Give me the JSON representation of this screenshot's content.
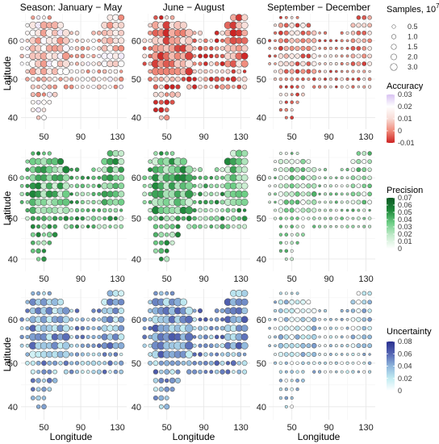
{
  "chart_data": {
    "type": "scatter",
    "column_titles": [
      "Season: January − May",
      "June − August",
      "September − December"
    ],
    "xlabel": "Longitude",
    "ylabel": "Latitude",
    "x_ticks": [
      50,
      90,
      130
    ],
    "y_ticks": [
      40,
      50,
      60
    ],
    "xlim": [
      25,
      140
    ],
    "ylim": [
      37,
      67
    ],
    "grid": true,
    "size_legend": {
      "title": "Samples, 10",
      "title_superscript": "7",
      "values": [
        0.5,
        1.0,
        1.5,
        2.0,
        3.0
      ],
      "labels": [
        "0.5",
        "1.0",
        "1.5",
        "2.0",
        "3.0"
      ]
    },
    "rows": [
      {
        "metric": "Accuracy",
        "colorbar_labels": [
          "0.03",
          "0.02",
          "0.01",
          "0",
          "-0.01"
        ],
        "colorbar_values": [
          0.03,
          0.02,
          0.01,
          0,
          -0.01
        ],
        "range": [
          -0.01,
          0.03
        ],
        "stops": [
          "#cc2222",
          "#f08a7a",
          "#f8dcd6",
          "#ffffff",
          "#d8c2f2"
        ],
        "means": [
          0.012,
          0.001,
          0.003
        ]
      },
      {
        "metric": "Precision",
        "colorbar_labels": [
          "0.07",
          "0.06",
          "0.05",
          "0.04",
          "0.03",
          "0.02",
          "0.01",
          "0"
        ],
        "colorbar_values": [
          0.07,
          0.06,
          0.05,
          0.04,
          0.03,
          0.02,
          0.01,
          0
        ],
        "range": [
          0,
          0.07
        ],
        "stops": [
          "#ffffff",
          "#c6ecce",
          "#6fcf87",
          "#1f8a3b",
          "#0b5a24"
        ],
        "means": [
          0.034,
          0.034,
          0.022
        ]
      },
      {
        "metric": "Uncertainty",
        "colorbar_labels": [
          "0.08",
          "0.06",
          "0.04",
          "0.02",
          "0"
        ],
        "colorbar_values": [
          0.08,
          0.06,
          0.04,
          0.02,
          0
        ],
        "range": [
          0,
          0.08
        ],
        "stops": [
          "#ffffff",
          "#c2ecf2",
          "#8fb6dc",
          "#5566b4",
          "#2a2f8f"
        ],
        "means": [
          0.037,
          0.042,
          0.022
        ]
      }
    ],
    "grid_points": {
      "lat_rows": [
        {
          "lat": 66,
          "lons": [
            38,
            44,
            50,
            56,
            122,
            128,
            134
          ]
        },
        {
          "lat": 64,
          "lons": [
            32,
            38,
            44,
            50,
            56,
            62,
            68,
            116,
            122,
            128,
            134
          ]
        },
        {
          "lat": 62,
          "lons": [
            32,
            38,
            44,
            50,
            56,
            62,
            68,
            74,
            80,
            86,
            104,
            110,
            116,
            122,
            128,
            134
          ]
        },
        {
          "lat": 60,
          "lons": [
            26,
            32,
            38,
            44,
            50,
            56,
            62,
            68,
            74,
            80,
            86,
            92,
            98,
            104,
            110,
            116,
            122,
            128,
            134
          ]
        },
        {
          "lat": 58,
          "lons": [
            26,
            32,
            38,
            44,
            50,
            56,
            62,
            68,
            74,
            80,
            86,
            92,
            98,
            104,
            110,
            116,
            122,
            128,
            134
          ]
        },
        {
          "lat": 56,
          "lons": [
            26,
            32,
            38,
            44,
            50,
            56,
            62,
            68,
            74,
            80,
            86,
            92,
            98,
            104,
            110,
            116,
            122,
            128,
            134
          ]
        },
        {
          "lat": 54,
          "lons": [
            26,
            32,
            38,
            44,
            50,
            56,
            62,
            68,
            74,
            80,
            86,
            92,
            98,
            104,
            110,
            116,
            122,
            128,
            134
          ]
        },
        {
          "lat": 52,
          "lons": [
            32,
            38,
            44,
            50,
            56,
            62,
            68,
            74,
            80,
            86,
            92,
            98,
            104,
            110,
            116,
            122,
            128,
            134
          ]
        },
        {
          "lat": 50,
          "lons": [
            32,
            38,
            44,
            50,
            56,
            62,
            68,
            74,
            80,
            86,
            92,
            98,
            104,
            110,
            116,
            122,
            128,
            134
          ]
        },
        {
          "lat": 48,
          "lons": [
            38,
            44,
            50,
            56,
            62,
            74,
            80,
            86,
            92,
            98,
            104,
            110,
            116,
            122,
            128,
            134
          ]
        },
        {
          "lat": 46,
          "lons": [
            38,
            44,
            50,
            56,
            62
          ]
        },
        {
          "lat": 44,
          "lons": [
            38,
            44,
            50,
            56
          ]
        },
        {
          "lat": 42,
          "lons": [
            38,
            44,
            50
          ]
        },
        {
          "lat": 40,
          "lons": [
            44,
            50
          ]
        }
      ],
      "core_lon": [
        35,
        75
      ],
      "core_lat": [
        52,
        64
      ],
      "east_lon": [
        114,
        136
      ],
      "east_lat": [
        54,
        66
      ]
    }
  }
}
